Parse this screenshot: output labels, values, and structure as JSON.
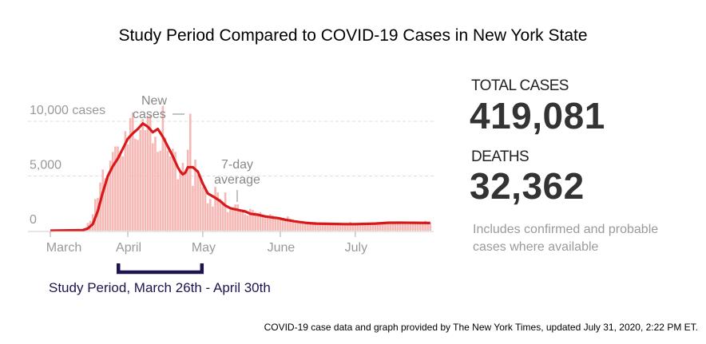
{
  "title": "Study Period Compared to COVID-19 Cases in New York State",
  "stats": {
    "total_cases_label": "TOTAL CASES",
    "total_cases_value": "419,081",
    "deaths_label": "DEATHS",
    "deaths_value": "32,362",
    "note_line1": "Includes confirmed and probable",
    "note_line2": "cases where available"
  },
  "study_period": {
    "label": "Study Period, March 26th - April 30th",
    "start_day": 25,
    "end_day": 60,
    "color": "#1c1450"
  },
  "footer": "COVID-19 case data and graph provided by The New York Times, updated July 31, 2020, 2:22 PM ET.",
  "chart_data": {
    "type": "bar",
    "title": "",
    "xlabel": "",
    "ylabel": "cases",
    "ylim": [
      0,
      11800
    ],
    "yticks": [
      {
        "value": 0,
        "label": "0"
      },
      {
        "value": 5000,
        "label": "5,000"
      },
      {
        "value": 10000,
        "label": "10,000 cases"
      }
    ],
    "xticks": [
      {
        "day": 0,
        "label": "March"
      },
      {
        "day": 31,
        "label": "April"
      },
      {
        "day": 61,
        "label": "May"
      },
      {
        "day": 92,
        "label": "June"
      },
      {
        "day": 122,
        "label": "July"
      }
    ],
    "grid": true,
    "start_date": "March 1",
    "annotations": {
      "bars_label_line1": "New",
      "bars_label_line2": "cases",
      "line_label_line1": "7-day",
      "line_label_line2": "average"
    },
    "colors": {
      "bars": "#f5b8b5",
      "line": "#d7191c"
    },
    "series": [
      {
        "name": "New cases",
        "type": "bar",
        "values": [
          0,
          0,
          1,
          0,
          2,
          6,
          11,
          16,
          37,
          38,
          48,
          58,
          92,
          104,
          117,
          700,
          900,
          1500,
          2900,
          3000,
          4400,
          5600,
          4800,
          4800,
          6400,
          7200,
          7700,
          7700,
          7100,
          6800,
          9100,
          7900,
          10300,
          10800,
          8400,
          8300,
          9200,
          10200,
          9200,
          10500,
          10600,
          8000,
          8600,
          7200,
          7300,
          11400,
          8500,
          7300,
          6800,
          7500,
          7200,
          4700,
          5400,
          6200,
          5200,
          7400,
          10700,
          4100,
          6500,
          5100,
          4700,
          4000,
          3900,
          2500,
          2900,
          2200,
          4000,
          3500,
          2900,
          2500,
          3500,
          1700,
          1900,
          2100,
          2400,
          2400,
          1900,
          1900,
          1500,
          1400,
          2000,
          1900,
          1700,
          1600,
          1700,
          1300,
          1200,
          1200,
          1500,
          1400,
          1300,
          1100,
          1100,
          1000,
          1100,
          1300,
          1100,
          1000,
          700,
          800,
          700,
          900,
          800,
          800,
          700,
          600,
          800,
          700,
          700,
          600,
          700,
          600,
          700,
          600,
          600,
          600,
          700,
          600,
          600,
          700,
          800,
          600,
          600,
          700,
          700,
          600,
          500,
          600,
          700,
          600,
          700,
          600,
          700,
          800,
          800,
          800,
          600,
          800,
          700,
          800,
          800,
          800,
          800,
          700,
          800,
          800,
          800,
          700,
          700,
          800,
          900,
          700,
          700
        ]
      },
      {
        "name": "7-day average",
        "type": "line",
        "points": [
          [
            0,
            0
          ],
          [
            13,
            50
          ],
          [
            15,
            200
          ],
          [
            17,
            600
          ],
          [
            19,
            1800
          ],
          [
            21,
            3500
          ],
          [
            23,
            5000
          ],
          [
            25,
            5900
          ],
          [
            27,
            6600
          ],
          [
            29,
            7500
          ],
          [
            31,
            8400
          ],
          [
            33,
            8900
          ],
          [
            35,
            9300
          ],
          [
            37,
            9800
          ],
          [
            39,
            9500
          ],
          [
            41,
            9000
          ],
          [
            43,
            9300
          ],
          [
            45,
            8600
          ],
          [
            47,
            7700
          ],
          [
            49,
            6800
          ],
          [
            51,
            5800
          ],
          [
            52,
            5400
          ],
          [
            53,
            5150
          ],
          [
            54,
            5300
          ],
          [
            55,
            5800
          ],
          [
            57,
            5800
          ],
          [
            59,
            5400
          ],
          [
            61,
            4300
          ],
          [
            63,
            3400
          ],
          [
            66,
            3000
          ],
          [
            68,
            2700
          ],
          [
            70,
            2300
          ],
          [
            72,
            2050
          ],
          [
            75,
            1900
          ],
          [
            78,
            1750
          ],
          [
            80,
            1550
          ],
          [
            83,
            1450
          ],
          [
            86,
            1300
          ],
          [
            89,
            1200
          ],
          [
            91,
            1150
          ],
          [
            94,
            1000
          ],
          [
            98,
            850
          ],
          [
            102,
            720
          ],
          [
            106,
            650
          ],
          [
            112,
            620
          ],
          [
            118,
            600
          ],
          [
            122,
            600
          ],
          [
            126,
            620
          ],
          [
            130,
            650
          ],
          [
            135,
            720
          ],
          [
            140,
            730
          ],
          [
            145,
            720
          ],
          [
            152,
            700
          ]
        ]
      }
    ]
  }
}
